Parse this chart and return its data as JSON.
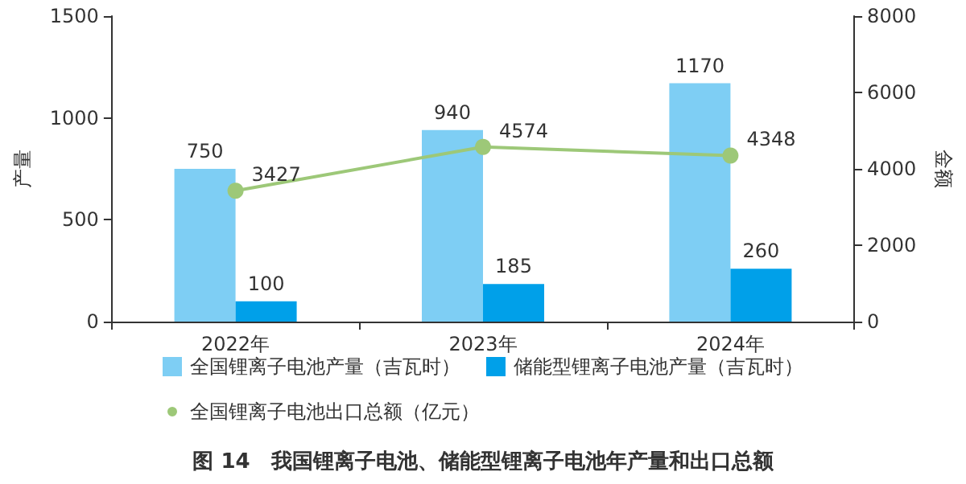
{
  "chart_data": {
    "type": "bar",
    "title": "图 14　我国锂离子电池、储能型锂离子电池年产量和出口总额",
    "ylabel": "产量",
    "y2label": "金额",
    "categories": [
      "2022年",
      "2023年",
      "2024年"
    ],
    "series": [
      {
        "name": "全国锂离子电池产量（吉瓦时）",
        "color": "#7ecef4",
        "values": [
          750,
          940,
          1170
        ]
      },
      {
        "name": "储能型锂离子电池产量（吉瓦时）",
        "color": "#00a0e9",
        "values": [
          100,
          185,
          260
        ]
      },
      {
        "name": "全国锂离子电池出口总额（亿元）",
        "type": "line",
        "axis": "y2",
        "color": "#9dc878",
        "values": [
          3427,
          4574,
          4348
        ]
      }
    ],
    "ylim": [
      0,
      1500
    ],
    "yticks": [
      0,
      500,
      1000,
      1500
    ],
    "y2lim": [
      0,
      8000
    ],
    "y2ticks": [
      0,
      2000,
      4000,
      6000,
      8000
    ],
    "data_labels": true,
    "grid": false,
    "legend": "bottom",
    "marker": "circle",
    "line_style": "solid"
  }
}
